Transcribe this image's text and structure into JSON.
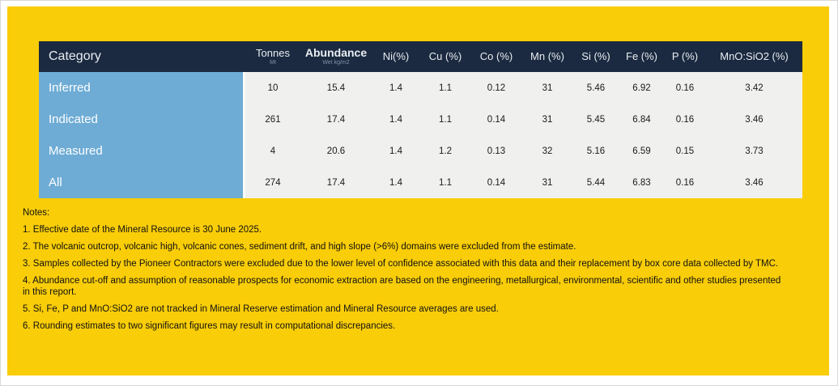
{
  "colors": {
    "panel_bg": "#F9CD08",
    "header_bg": "#1B2A40",
    "category_bg": "#6EACD5",
    "cell_bg": "#F0F0EE",
    "header_text": "#E9EDF2",
    "subheader_text": "#8192A8"
  },
  "table": {
    "columns": [
      {
        "label": "Category",
        "sublabel": ""
      },
      {
        "label": "Tonnes",
        "sublabel": "Mt"
      },
      {
        "label": "Abundance",
        "sublabel": "Wet kg/m2"
      },
      {
        "label": "Ni(%)",
        "sublabel": ""
      },
      {
        "label": "Cu (%)",
        "sublabel": ""
      },
      {
        "label": "Co (%)",
        "sublabel": ""
      },
      {
        "label": "Mn (%)",
        "sublabel": ""
      },
      {
        "label": "Si (%)",
        "sublabel": ""
      },
      {
        "label": "Fe (%)",
        "sublabel": ""
      },
      {
        "label": "P (%)",
        "sublabel": ""
      },
      {
        "label": "MnO:SiO2 (%)",
        "sublabel": ""
      }
    ],
    "rows": [
      {
        "category": "Inferred",
        "values": [
          "10",
          "15.4",
          "1.4",
          "1.1",
          "0.12",
          "31",
          "5.46",
          "6.92",
          "0.16",
          "3.42"
        ]
      },
      {
        "category": "Indicated",
        "values": [
          "261",
          "17.4",
          "1.4",
          "1.1",
          "0.14",
          "31",
          "5.45",
          "6.84",
          "0.16",
          "3.46"
        ]
      },
      {
        "category": "Measured",
        "values": [
          "4",
          "20.6",
          "1.4",
          "1.2",
          "0.13",
          "32",
          "5.16",
          "6.59",
          "0.15",
          "3.73"
        ]
      },
      {
        "category": "All",
        "values": [
          "274",
          "17.4",
          "1.4",
          "1.1",
          "0.14",
          "31",
          "5.44",
          "6.83",
          "0.16",
          "3.46"
        ]
      }
    ]
  },
  "notes": {
    "title": "Notes:",
    "items": [
      "1. Effective date of the Mineral Resource is 30 June 2025.",
      "2. The volcanic outcrop, volcanic high, volcanic cones, sediment drift, and high slope (>6%) domains were excluded from the estimate.",
      "3. Samples collected by the Pioneer Contractors were excluded due to the lower level of confidence associated with this data and their replacement by box core data collected by TMC.",
      "4. Abundance cut-off and assumption of reasonable prospects for economic extraction are based on the engineering, metallurgical, environmental, scientific and other studies presented in this report.",
      "5. Si, Fe, P and MnO:SiO2 are not tracked in Mineral Reserve estimation and Mineral Resource averages are used.",
      "6. Rounding estimates to two significant figures may result in computational discrepancies."
    ]
  }
}
